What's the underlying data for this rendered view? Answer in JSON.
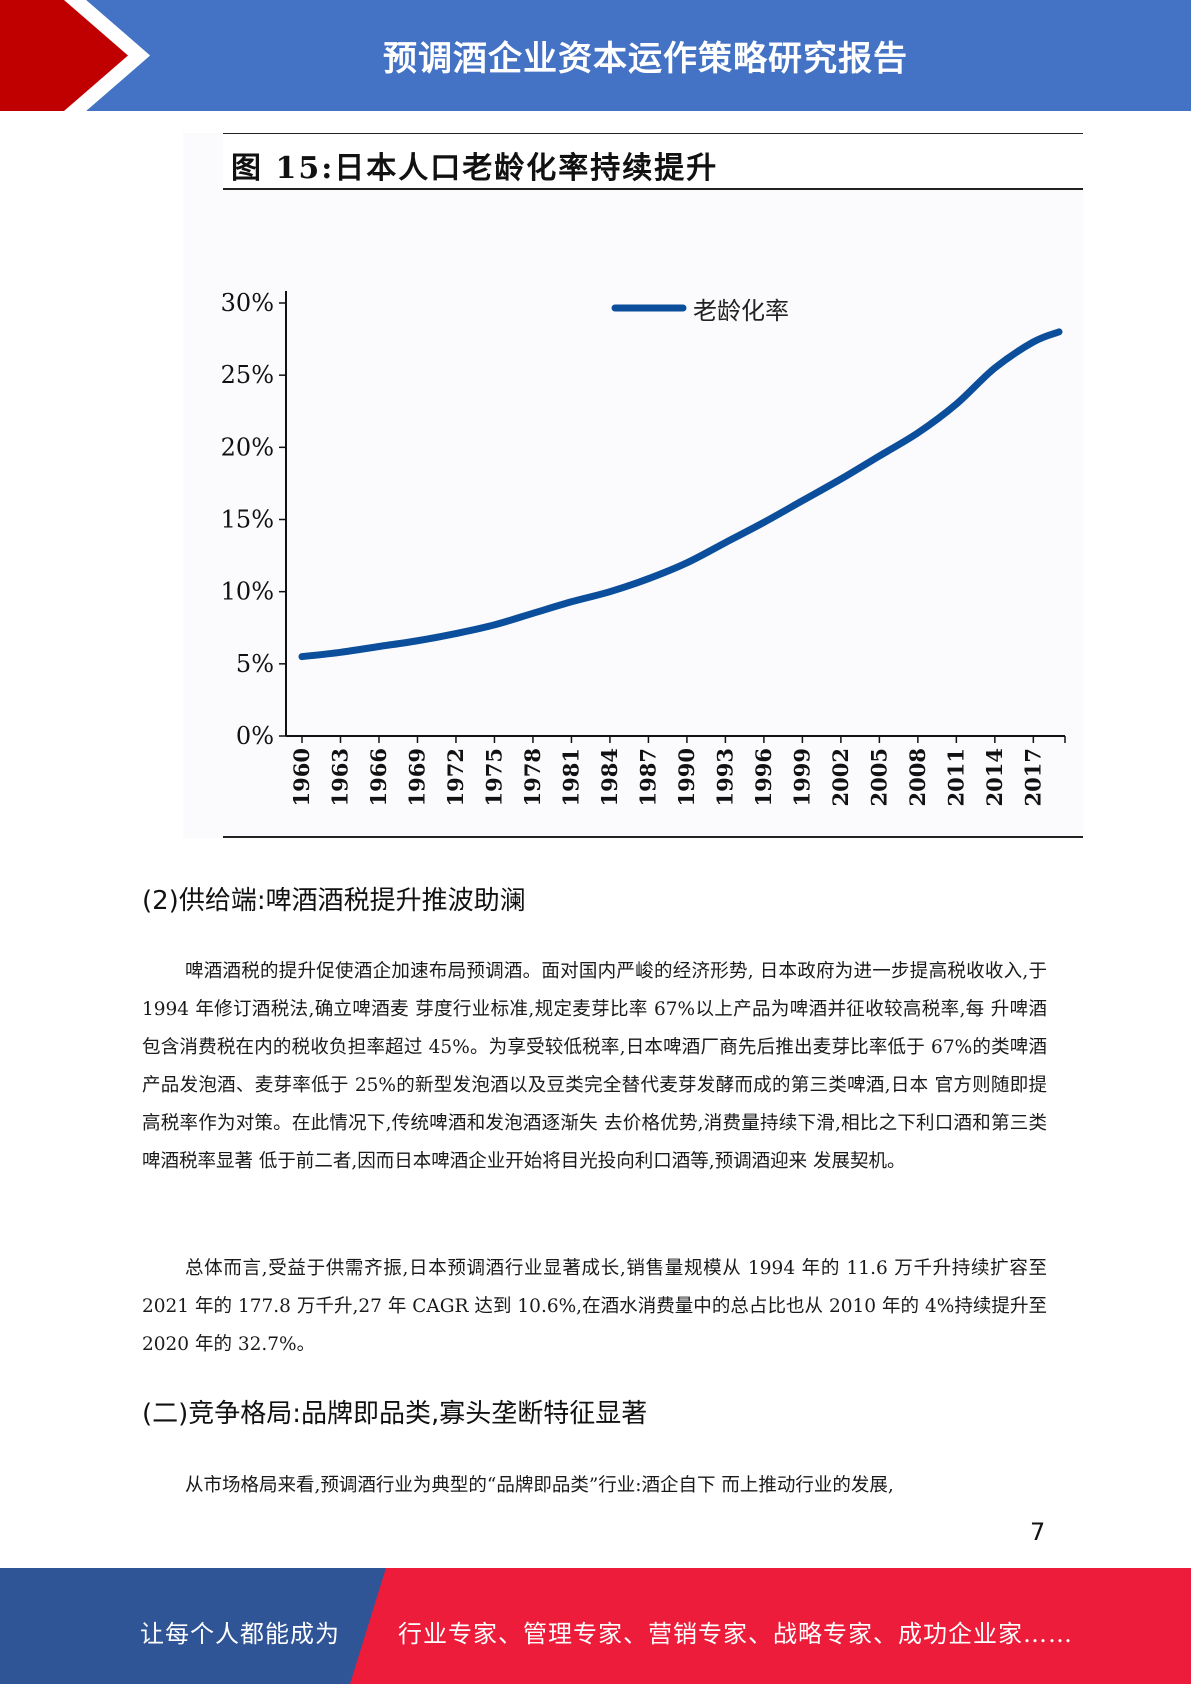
{
  "header": {
    "title": "预调酒企业资本运作策略研究报告",
    "colors": {
      "blue": "#4472c4",
      "red": "#c00000"
    }
  },
  "figure": {
    "title": "图 15:日本人口老龄化率持续提升"
  },
  "chart_data": {
    "type": "line",
    "legend": "老龄化率",
    "legend_placement": "top",
    "color": "#0b4f9c",
    "x_ticks": [
      "1960",
      "1963",
      "1966",
      "1969",
      "1972",
      "1975",
      "1978",
      "1981",
      "1984",
      "1987",
      "1990",
      "1993",
      "1996",
      "1999",
      "2002",
      "2005",
      "2008",
      "2011",
      "2014",
      "2017"
    ],
    "y_ticks": [
      "0%",
      "5%",
      "10%",
      "15%",
      "20%",
      "25%",
      "30%"
    ],
    "ylim": [
      0,
      30
    ],
    "xlim": [
      1960,
      2019
    ],
    "grid": false,
    "series": [
      {
        "x": [
          1960,
          1963,
          1966,
          1969,
          1972,
          1975,
          1978,
          1981,
          1984,
          1987,
          1990,
          1993,
          1996,
          1999,
          2002,
          2005,
          2008,
          2011,
          2014,
          2017,
          2019
        ],
        "y": [
          5.5,
          5.8,
          6.2,
          6.6,
          7.1,
          7.7,
          8.5,
          9.3,
          10.0,
          10.9,
          12.0,
          13.4,
          14.8,
          16.3,
          17.8,
          19.4,
          21.0,
          23.0,
          25.5,
          27.3,
          28.0
        ]
      }
    ]
  },
  "sections": {
    "supply_heading": "(2)供给端:啤酒酒税提升推波助澜",
    "para1": "啤酒酒税的提升促使酒企加速布局预调酒。面对国内严峻的经济形势, 日本政府为进一步提高税收收入,于 1994 年修订酒税法,确立啤酒麦 芽度行业标准,规定麦芽比率 67%以上产品为啤酒并征收较高税率,每 升啤酒包含消费税在内的税收负担率超过 45%。为享受较低税率,日本啤酒厂商先后推出麦芽比率低于 67%的类啤酒产品发泡酒、麦芽率低于 25%的新型发泡酒以及豆类完全替代麦芽发酵而成的第三类啤酒,日本 官方则随即提高税率作为对策。在此情况下,传统啤酒和发泡酒逐渐失 去价格优势,消费量持续下滑,相比之下利口酒和第三类啤酒税率显著 低于前二者,因而日本啤酒企业开始将目光投向利口酒等,预调酒迎来 发展契机。",
    "para2": "总体而言,受益于供需齐振,日本预调酒行业显著成长,销售量规模从 1994 年的 11.6 万千升持续扩容至 2021 年的 177.8 万千升,27 年 CAGR 达到 10.6%,在酒水消费量中的总占比也从 2010 年的 4%持续提升至 2020 年的 32.7%。",
    "competition_heading": "(二)竞争格局:品牌即品类,寡头垄断特征显著",
    "para3": "从市场格局来看,预调酒行业为典型的“品牌即品类”行业:酒企自下 而上推动行业的发展,"
  },
  "page_number": "7",
  "footer": {
    "left": "让每个人都能成为",
    "right": "行业专家、管理专家、营销专家、战略专家、成功企业家……",
    "colors": {
      "blue": "#2f5597",
      "red": "#ed1c3a"
    }
  }
}
